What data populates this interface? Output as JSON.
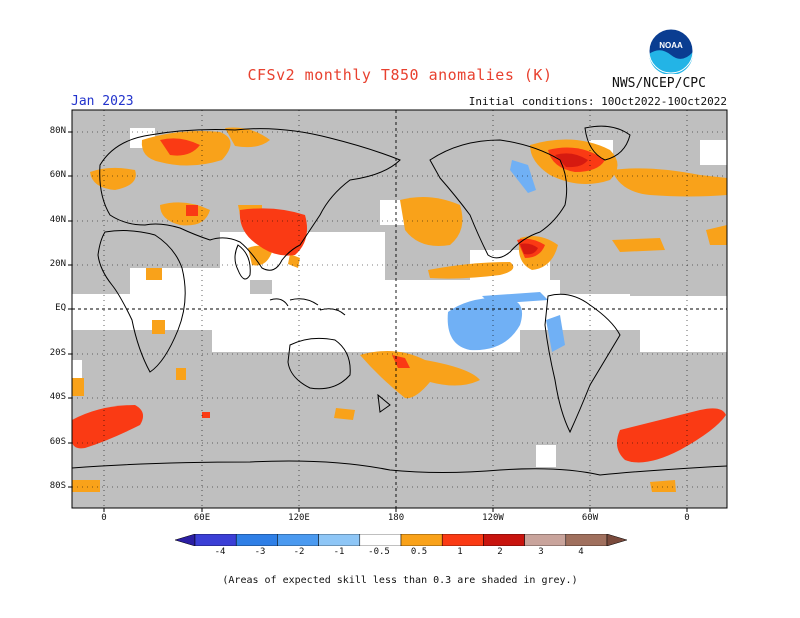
{
  "header": {
    "title": "CFSv2 monthly T850 anomalies (K)",
    "agency": "NWS/NCEP/CPC",
    "month": "Jan 2023",
    "initial_conditions": "Initial conditions: 10Oct2022-10Oct2022",
    "logo_text": "NOAA"
  },
  "map": {
    "lat_labels": [
      "80N",
      "60N",
      "40N",
      "20N",
      "EQ",
      "20S",
      "40S",
      "60S",
      "80S"
    ],
    "lon_labels": [
      "0",
      "60E",
      "120E",
      "180",
      "120W",
      "60W",
      "0"
    ]
  },
  "colorbar": {
    "labels": [
      "-4",
      "-3",
      "-2",
      "-1",
      "-0.5",
      "0.5",
      "1",
      "2",
      "3",
      "4"
    ],
    "colors": [
      "#2b1ea3",
      "#3b3fd6",
      "#2f7fe6",
      "#4b9af0",
      "#8ec6f6",
      "#ffffff",
      "#f9a21a",
      "#fa3a14",
      "#c8140e",
      "#c9a49c",
      "#a0705e",
      "#7a4a3c"
    ]
  },
  "footnote": "(Areas of expected skill less than 0.3 are shaded in grey.)",
  "colors": {
    "grey": "#bfbfbf",
    "orange": "#f9a21a",
    "red": "#fa3a14",
    "darkred": "#d61a10",
    "blue": "#70b0f5",
    "title": "#e8412f",
    "month": "#2233cc"
  }
}
